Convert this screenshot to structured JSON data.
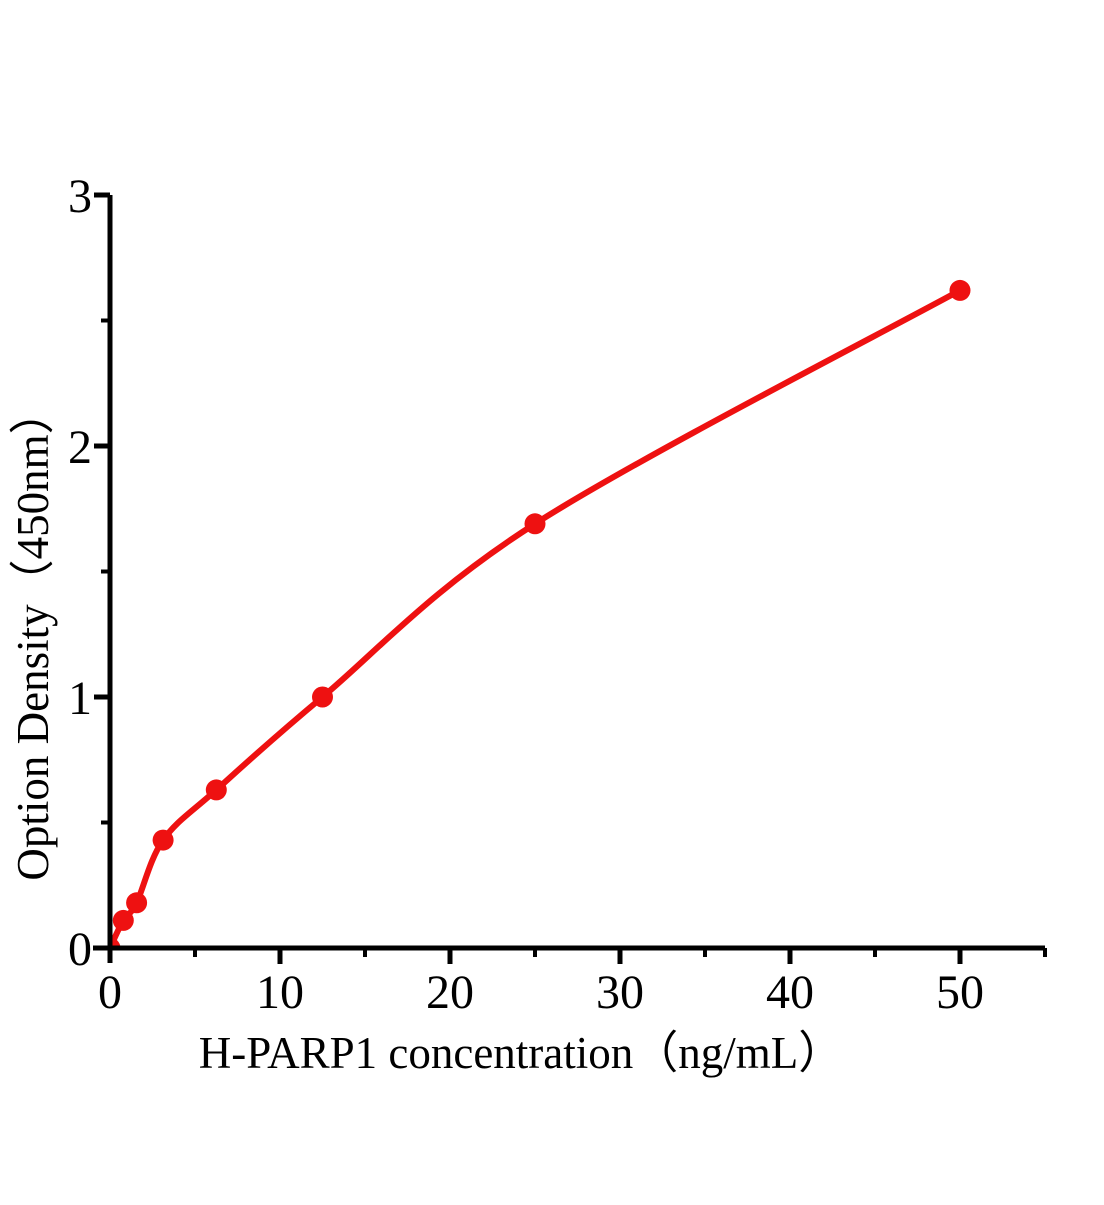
{
  "figure": {
    "background_color": "#ffffff",
    "axis_color": "#000000",
    "series_color": "#ee1111"
  },
  "chart_data": {
    "type": "scatter",
    "curve": "smooth-fit-line",
    "title": "",
    "xlabel": "H-PARP1 concentration（ng/mL）",
    "ylabel": "Option Density（450nm）",
    "x": [
      0,
      0.781,
      1.563,
      3.125,
      6.25,
      12.5,
      25,
      50
    ],
    "y": [
      0,
      0.11,
      0.18,
      0.43,
      0.63,
      1.0,
      1.69,
      2.62
    ],
    "xlim": [
      0,
      55
    ],
    "ylim": [
      0,
      3
    ],
    "x_major_ticks": [
      0,
      10,
      20,
      30,
      40,
      50
    ],
    "x_minor_ticks": [
      5,
      15,
      25,
      35,
      45,
      55
    ],
    "y_major_ticks": [
      0,
      1,
      2,
      3
    ],
    "y_minor_ticks": [
      0.5,
      1.5,
      2.5
    ],
    "grid": false,
    "legend": null,
    "marker": "filled-circle",
    "series_color": "#ee1111",
    "axis_color": "#000000"
  }
}
